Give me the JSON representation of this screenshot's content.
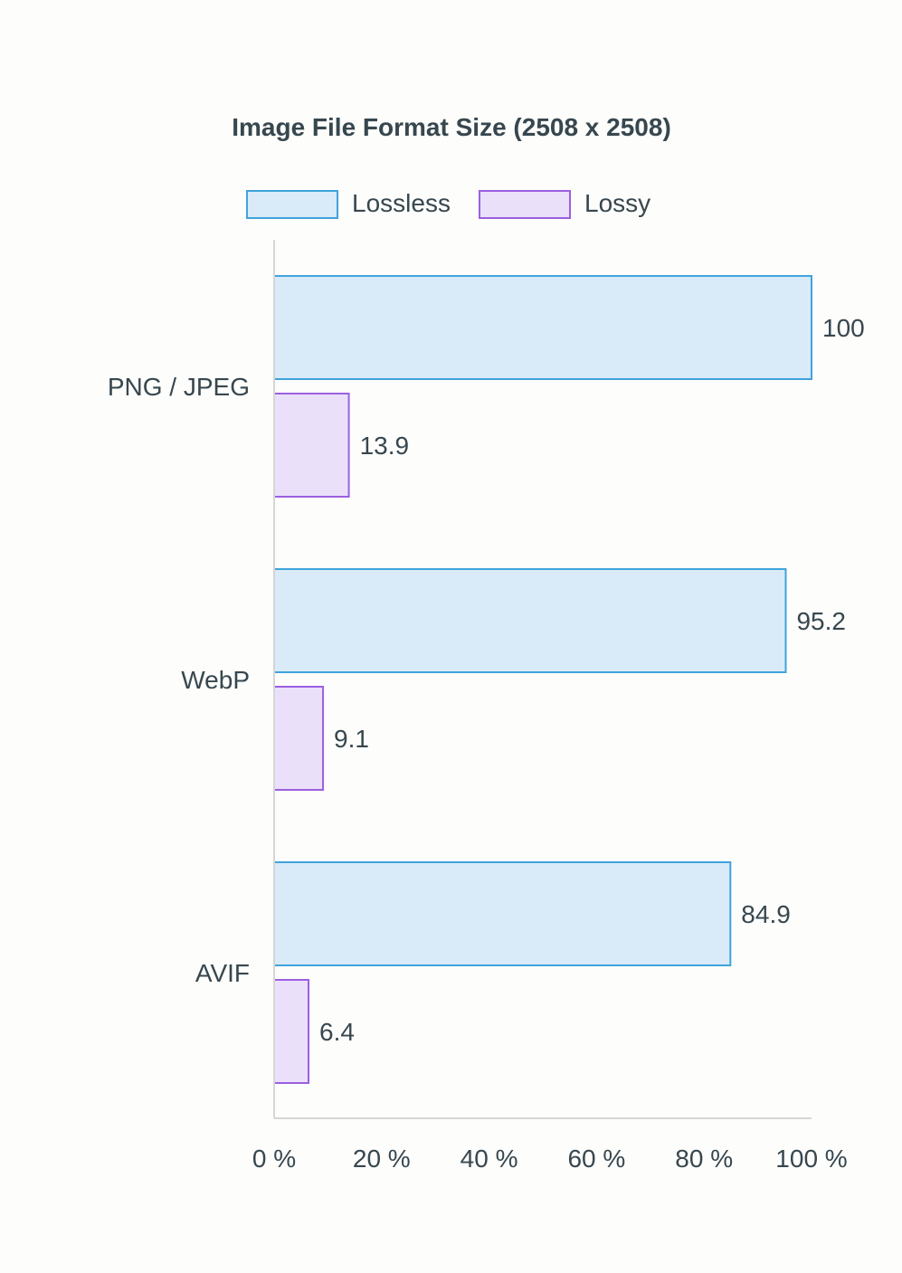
{
  "chart_data": {
    "type": "bar",
    "orientation": "horizontal",
    "title": "Image File Format Size (2508 x 2508)",
    "categories": [
      "PNG / JPEG",
      "WebP",
      "AVIF"
    ],
    "series": [
      {
        "name": "Lossless",
        "values": [
          100,
          95.2,
          84.9
        ],
        "labels": [
          "100",
          "95.2",
          "84.9"
        ],
        "fill": "#d9ebf8",
        "stroke": "#3fa3dc"
      },
      {
        "name": "Lossy",
        "values": [
          13.9,
          9.1,
          6.4
        ],
        "labels": [
          "13.9",
          "9.1",
          "6.4"
        ],
        "fill": "#ebe0fa",
        "stroke": "#9b5fe0"
      }
    ],
    "xlim": [
      0,
      100
    ],
    "xticks": [
      0,
      20,
      40,
      60,
      80,
      100
    ],
    "xtick_labels": [
      "0 %",
      "20 %",
      "40 %",
      "60 %",
      "80 %",
      "100 %"
    ],
    "grid": false,
    "legend": "top-center"
  }
}
